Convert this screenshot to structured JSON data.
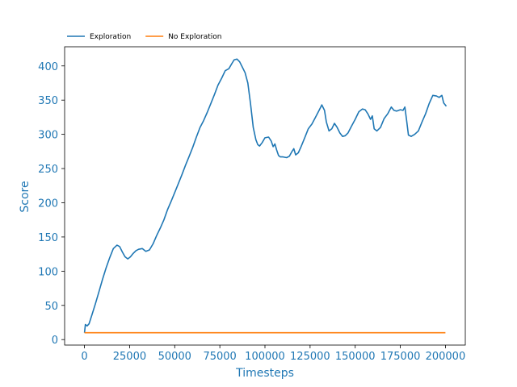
{
  "chart_data": {
    "type": "line",
    "title": "",
    "xlabel": "Timesteps",
    "ylabel": "Score",
    "xlim": [
      -11000,
      211000
    ],
    "ylim": [
      -8,
      428
    ],
    "xticks": [
      0,
      25000,
      50000,
      75000,
      100000,
      125000,
      150000,
      175000,
      200000
    ],
    "yticks": [
      0,
      50,
      100,
      150,
      200,
      250,
      300,
      350,
      400
    ],
    "grid": false,
    "legend_position": "top-left, above plot",
    "colors": {
      "axis_label": "#1f77b4"
    },
    "series": [
      {
        "name": "Exploration",
        "color": "#1f77b4",
        "points": [
          [
            0,
            10
          ],
          [
            500,
            22
          ],
          [
            1500,
            20
          ],
          [
            2500,
            23
          ],
          [
            4000,
            35
          ],
          [
            6000,
            52
          ],
          [
            8000,
            70
          ],
          [
            10000,
            88
          ],
          [
            12000,
            105
          ],
          [
            14000,
            120
          ],
          [
            16000,
            133
          ],
          [
            18000,
            138
          ],
          [
            19500,
            136
          ],
          [
            21000,
            128
          ],
          [
            22500,
            121
          ],
          [
            24000,
            118
          ],
          [
            25500,
            121
          ],
          [
            27000,
            126
          ],
          [
            28500,
            130
          ],
          [
            30000,
            132
          ],
          [
            32000,
            133
          ],
          [
            34000,
            129
          ],
          [
            36000,
            131
          ],
          [
            38000,
            140
          ],
          [
            40000,
            152
          ],
          [
            42000,
            163
          ],
          [
            44000,
            175
          ],
          [
            46000,
            190
          ],
          [
            48000,
            202
          ],
          [
            50000,
            215
          ],
          [
            52000,
            228
          ],
          [
            54000,
            241
          ],
          [
            56000,
            255
          ],
          [
            58000,
            268
          ],
          [
            60000,
            281
          ],
          [
            62000,
            296
          ],
          [
            64000,
            310
          ],
          [
            66000,
            320
          ],
          [
            68000,
            332
          ],
          [
            70000,
            345
          ],
          [
            72000,
            358
          ],
          [
            74000,
            372
          ],
          [
            76000,
            382
          ],
          [
            78000,
            393
          ],
          [
            80000,
            396
          ],
          [
            82000,
            405
          ],
          [
            83000,
            409
          ],
          [
            84500,
            410
          ],
          [
            86000,
            406
          ],
          [
            87500,
            398
          ],
          [
            89000,
            390
          ],
          [
            90500,
            375
          ],
          [
            92000,
            345
          ],
          [
            93500,
            310
          ],
          [
            95000,
            292
          ],
          [
            96000,
            285
          ],
          [
            97000,
            283
          ],
          [
            98500,
            288
          ],
          [
            100000,
            295
          ],
          [
            102000,
            296
          ],
          [
            103500,
            290
          ],
          [
            104500,
            282
          ],
          [
            105500,
            286
          ],
          [
            106500,
            277
          ],
          [
            107500,
            269
          ],
          [
            108500,
            267
          ],
          [
            110000,
            267
          ],
          [
            112000,
            266
          ],
          [
            113500,
            268
          ],
          [
            115000,
            275
          ],
          [
            116000,
            279
          ],
          [
            117000,
            270
          ],
          [
            118500,
            273
          ],
          [
            120000,
            282
          ],
          [
            122000,
            295
          ],
          [
            124000,
            308
          ],
          [
            126000,
            315
          ],
          [
            128000,
            325
          ],
          [
            130000,
            335
          ],
          [
            131500,
            343
          ],
          [
            133000,
            335
          ],
          [
            134000,
            318
          ],
          [
            135500,
            305
          ],
          [
            137000,
            308
          ],
          [
            138500,
            316
          ],
          [
            140000,
            310
          ],
          [
            141500,
            302
          ],
          [
            143000,
            297
          ],
          [
            144500,
            298
          ],
          [
            146000,
            302
          ],
          [
            148000,
            312
          ],
          [
            150000,
            322
          ],
          [
            152000,
            333
          ],
          [
            154000,
            337
          ],
          [
            155500,
            336
          ],
          [
            157000,
            330
          ],
          [
            158500,
            322
          ],
          [
            159500,
            327
          ],
          [
            160500,
            308
          ],
          [
            162000,
            305
          ],
          [
            164000,
            310
          ],
          [
            166000,
            323
          ],
          [
            168000,
            330
          ],
          [
            170000,
            340
          ],
          [
            171500,
            335
          ],
          [
            173000,
            334
          ],
          [
            175000,
            336
          ],
          [
            176500,
            335
          ],
          [
            177500,
            340
          ],
          [
            178500,
            320
          ],
          [
            179500,
            299
          ],
          [
            181000,
            297
          ],
          [
            183000,
            300
          ],
          [
            185000,
            305
          ],
          [
            187000,
            318
          ],
          [
            189000,
            330
          ],
          [
            191000,
            345
          ],
          [
            193000,
            357
          ],
          [
            195000,
            356
          ],
          [
            196500,
            354
          ],
          [
            198000,
            357
          ],
          [
            199000,
            346
          ],
          [
            200500,
            341
          ]
        ]
      },
      {
        "name": "No Exploration",
        "color": "#ff7f0e",
        "points": [
          [
            0,
            10
          ],
          [
            200000,
            10
          ]
        ]
      }
    ]
  }
}
